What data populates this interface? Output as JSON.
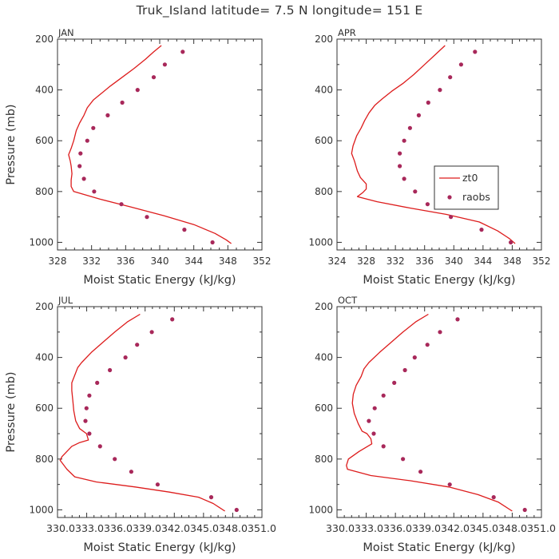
{
  "figure": {
    "title": "Truk_Island  latitude= 7.5 N longitude= 151 E"
  },
  "colors": {
    "model_line": "#dd1c1c",
    "obs_dot": "#a8285a",
    "axes": "#333333"
  },
  "chart_data": [
    {
      "type": "line",
      "panel_label": "JAN",
      "xlabel": "Moist Static Energy (kJ/kg)",
      "ylabel": "Pressure (mb)",
      "xlim": [
        328,
        352
      ],
      "ylim": [
        1030,
        200
      ],
      "x_tick_labels": [
        "328",
        "332",
        "336",
        "340",
        "344",
        "348",
        "352"
      ],
      "y_tick_labels": [
        "200",
        "400",
        "600",
        "800",
        "1000"
      ],
      "series": [
        {
          "name": "zt0",
          "kind": "line",
          "points": [
            [
              340.2,
              225
            ],
            [
              339.3,
              250
            ],
            [
              338.3,
              280
            ],
            [
              337,
              315
            ],
            [
              335.6,
              350
            ],
            [
              334.2,
              385
            ],
            [
              333.1,
              415
            ],
            [
              332.2,
              440
            ],
            [
              331.5,
              470
            ],
            [
              331.1,
              500
            ],
            [
              330.6,
              530
            ],
            [
              330.2,
              560
            ],
            [
              329.9,
              600
            ],
            [
              329.6,
              630
            ],
            [
              329.3,
              655
            ],
            [
              329.5,
              680
            ],
            [
              329.6,
              700
            ],
            [
              329.7,
              730
            ],
            [
              329.6,
              755
            ],
            [
              329.6,
              780
            ],
            [
              329.9,
              800
            ],
            [
              333,
              830
            ],
            [
              336.5,
              860
            ],
            [
              340.5,
              895
            ],
            [
              344,
              930
            ],
            [
              346.5,
              965
            ],
            [
              347.8,
              990
            ],
            [
              348.4,
              1005
            ]
          ]
        },
        {
          "name": "raobs",
          "kind": "points",
          "points": [
            [
              342.7,
              250
            ],
            [
              340.6,
              300
            ],
            [
              339.3,
              350
            ],
            [
              337.4,
              400
            ],
            [
              335.6,
              450
            ],
            [
              333.9,
              500
            ],
            [
              332.2,
              550
            ],
            [
              331.5,
              600
            ],
            [
              330.7,
              650
            ],
            [
              330.6,
              700
            ],
            [
              331.1,
              750
            ],
            [
              332.3,
              800
            ],
            [
              335.5,
              850
            ],
            [
              338.5,
              900
            ],
            [
              342.9,
              950
            ],
            [
              346.2,
              1000
            ]
          ]
        }
      ]
    },
    {
      "type": "line",
      "panel_label": "APR",
      "xlabel": "Moist Static Energy (kJ/kg)",
      "ylabel": "",
      "xlim": [
        324,
        352
      ],
      "ylim": [
        1030,
        200
      ],
      "x_tick_labels": [
        "324",
        "328",
        "332",
        "336",
        "340",
        "344",
        "348",
        "352"
      ],
      "y_tick_labels": [
        "200",
        "400",
        "600",
        "800",
        "1000"
      ],
      "legend": {
        "position": "middle-right",
        "entries": [
          "zt0",
          "raobs"
        ]
      },
      "series": [
        {
          "name": "zt0",
          "kind": "line",
          "points": [
            [
              338.8,
              225
            ],
            [
              337.5,
              260
            ],
            [
              336,
              300
            ],
            [
              334.5,
              340
            ],
            [
              333,
              375
            ],
            [
              331.5,
              405
            ],
            [
              330.2,
              435
            ],
            [
              329.2,
              460
            ],
            [
              328.4,
              490
            ],
            [
              327.8,
              520
            ],
            [
              327.3,
              550
            ],
            [
              326.7,
              580
            ],
            [
              326.2,
              620
            ],
            [
              326,
              650
            ],
            [
              326.4,
              680
            ],
            [
              326.8,
              720
            ],
            [
              327.2,
              745
            ],
            [
              328,
              770
            ],
            [
              328,
              790
            ],
            [
              327.5,
              805
            ],
            [
              326.8,
              820
            ],
            [
              329.5,
              840
            ],
            [
              334,
              865
            ],
            [
              339,
              890
            ],
            [
              343.5,
              920
            ],
            [
              346,
              955
            ],
            [
              347.6,
              985
            ],
            [
              348.4,
              1005
            ]
          ]
        },
        {
          "name": "raobs",
          "kind": "points",
          "points": [
            [
              342.9,
              250
            ],
            [
              341,
              300
            ],
            [
              339.5,
              350
            ],
            [
              338.1,
              400
            ],
            [
              336.5,
              450
            ],
            [
              335.2,
              500
            ],
            [
              334,
              550
            ],
            [
              333.2,
              600
            ],
            [
              332.6,
              650
            ],
            [
              332.6,
              700
            ],
            [
              333.2,
              750
            ],
            [
              334.7,
              800
            ],
            [
              336.4,
              850
            ],
            [
              339.6,
              900
            ],
            [
              343.8,
              950
            ],
            [
              347.8,
              1000
            ]
          ]
        }
      ]
    },
    {
      "type": "line",
      "panel_label": "JUL",
      "xlabel": "Moist Static Energy (kJ/kg)",
      "ylabel": "Pressure (mb)",
      "xlim": [
        330.03,
        351.0
      ],
      "ylim": [
        1030,
        200
      ],
      "x_tick_labels": [
        "330.0",
        "333.0",
        "336.0",
        "339.0",
        "342.0",
        "345.0",
        "348.0",
        "351.0"
      ],
      "x_tick_label_text": "330.0333.0336.0339.0342.0345.0348.0351.0",
      "y_tick_labels": [
        "200",
        "400",
        "600",
        "800",
        "1000"
      ],
      "series": [
        {
          "name": "zt0",
          "kind": "line",
          "points": [
            [
              338.5,
              230
            ],
            [
              337.2,
              260
            ],
            [
              335.9,
              300
            ],
            [
              334.7,
              340
            ],
            [
              333.5,
              380
            ],
            [
              332.5,
              420
            ],
            [
              332.1,
              440
            ],
            [
              331.8,
              470
            ],
            [
              331.5,
              500
            ],
            [
              331.5,
              530
            ],
            [
              331.6,
              570
            ],
            [
              331.7,
              610
            ],
            [
              331.9,
              650
            ],
            [
              332.3,
              680
            ],
            [
              333,
              700
            ],
            [
              333.2,
              725
            ],
            [
              332.3,
              735
            ],
            [
              331.5,
              750
            ],
            [
              331,
              770
            ],
            [
              330.5,
              790
            ],
            [
              330.3,
              805
            ],
            [
              331,
              840
            ],
            [
              331.8,
              870
            ],
            [
              334,
              890
            ],
            [
              338,
              910
            ],
            [
              341.5,
              930
            ],
            [
              344.5,
              950
            ],
            [
              346,
              975
            ],
            [
              347.2,
              1005
            ]
          ]
        },
        {
          "name": "raobs",
          "kind": "points",
          "points": [
            [
              341.8,
              250
            ],
            [
              339.7,
              300
            ],
            [
              338.2,
              350
            ],
            [
              337,
              400
            ],
            [
              335.4,
              450
            ],
            [
              334.1,
              500
            ],
            [
              333.3,
              550
            ],
            [
              333,
              600
            ],
            [
              332.9,
              650
            ],
            [
              333.3,
              700
            ],
            [
              334.4,
              750
            ],
            [
              335.9,
              800
            ],
            [
              337.6,
              850
            ],
            [
              340.3,
              900
            ],
            [
              345.8,
              950
            ],
            [
              348.4,
              1000
            ]
          ]
        }
      ]
    },
    {
      "type": "line",
      "panel_label": "OCT",
      "xlabel": "Moist Static Energy (kJ/kg)",
      "ylabel": "",
      "xlim": [
        330.03,
        351.0
      ],
      "ylim": [
        1030,
        200
      ],
      "x_tick_labels": [
        "330.0",
        "333.0",
        "336.0",
        "339.0",
        "342.0",
        "345.0",
        "348.0",
        "351.0"
      ],
      "x_tick_label_text": "330.0333.0336.0339.0342.0345.0348.0351.0",
      "y_tick_labels": [
        "200",
        "400",
        "600",
        "800",
        "1000"
      ],
      "series": [
        {
          "name": "zt0",
          "kind": "line",
          "points": [
            [
              339.4,
              230
            ],
            [
              338.1,
              260
            ],
            [
              336.8,
              300
            ],
            [
              335.6,
              340
            ],
            [
              334.4,
              380
            ],
            [
              333.3,
              420
            ],
            [
              332.8,
              445
            ],
            [
              332.5,
              475
            ],
            [
              332,
              510
            ],
            [
              331.7,
              545
            ],
            [
              331.6,
              580
            ],
            [
              331.8,
              620
            ],
            [
              332.2,
              660
            ],
            [
              332.6,
              690
            ],
            [
              333.1,
              700
            ],
            [
              333.5,
              720
            ],
            [
              333.6,
              740
            ],
            [
              332.3,
              770
            ],
            [
              331.2,
              800
            ],
            [
              331,
              825
            ],
            [
              331.1,
              840
            ],
            [
              333.5,
              865
            ],
            [
              337.5,
              885
            ],
            [
              341.5,
              910
            ],
            [
              344.5,
              940
            ],
            [
              346.6,
              970
            ],
            [
              348,
              1005
            ]
          ]
        },
        {
          "name": "raobs",
          "kind": "points",
          "points": [
            [
              342.4,
              250
            ],
            [
              340.6,
              300
            ],
            [
              339.3,
              350
            ],
            [
              338,
              400
            ],
            [
              337,
              450
            ],
            [
              335.9,
              500
            ],
            [
              334.8,
              550
            ],
            [
              333.9,
              600
            ],
            [
              333.3,
              650
            ],
            [
              333.8,
              700
            ],
            [
              334.8,
              750
            ],
            [
              336.8,
              800
            ],
            [
              338.6,
              850
            ],
            [
              341.6,
              900
            ],
            [
              346.1,
              950
            ],
            [
              349.3,
              1000
            ]
          ]
        }
      ]
    }
  ]
}
